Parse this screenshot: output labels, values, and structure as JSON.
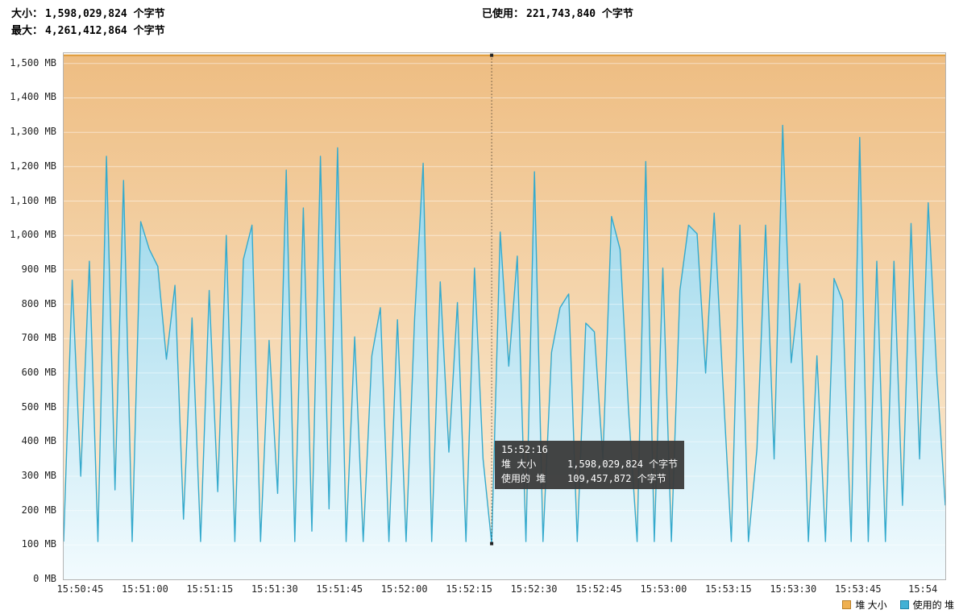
{
  "header": {
    "size_label": "大小：",
    "size_value": "1,598,029,824 个字节",
    "max_label": "最大：",
    "max_value": "4,261,412,864 个字节",
    "used_label": "已使用：",
    "used_value": "221,743,840 个字节"
  },
  "tooltip": {
    "time": "15:52:16",
    "rows": [
      {
        "name": "堆 大小",
        "value": "1,598,029,824 个字节"
      },
      {
        "name": "使用的 堆",
        "value": "109,457,872 个字节"
      }
    ]
  },
  "legend": [
    {
      "label": "堆 大小",
      "color": "#efb050",
      "border": "#b97f28"
    },
    {
      "label": "使用的 堆",
      "color": "#41b1d5",
      "border": "#1f84a8"
    }
  ],
  "chart_data": {
    "type": "area",
    "unit": "MB",
    "ylim": [
      0,
      1530
    ],
    "ytick_step": 100,
    "x_start": "15:50:41",
    "x_end": "15:54:05",
    "x_ticks": [
      "15:50:45",
      "15:51:00",
      "15:51:15",
      "15:51:30",
      "15:51:45",
      "15:52:00",
      "15:52:15",
      "15:52:30",
      "15:52:45",
      "15:53:00",
      "15:53:15",
      "15:53:30",
      "15:53:45",
      "15:54"
    ],
    "grid_color": "rgba(255,255,255,0.5)",
    "series": [
      {
        "name": "堆 大小",
        "kind": "constant",
        "value_mb": 1524,
        "line_color": "#de9a35",
        "fill_top": "#eebd82",
        "fill_bottom": "#fcf1de"
      },
      {
        "name": "使用的 堆",
        "kind": "points",
        "line_color": "#35aacd",
        "fill_top": "#8fd2e8",
        "fill_bottom": "#f2fbfe",
        "values_mb": [
          110,
          870,
          300,
          925,
          110,
          1230,
          260,
          1160,
          110,
          1040,
          960,
          910,
          640,
          855,
          175,
          760,
          110,
          840,
          255,
          1000,
          110,
          930,
          1030,
          110,
          695,
          250,
          1190,
          110,
          1080,
          140,
          1230,
          205,
          1255,
          110,
          705,
          110,
          650,
          790,
          110,
          755,
          110,
          760,
          1210,
          110,
          865,
          370,
          805,
          110,
          905,
          350,
          104,
          1010,
          620,
          940,
          110,
          1185,
          110,
          660,
          790,
          830,
          110,
          745,
          720,
          350,
          1055,
          960,
          490,
          110,
          1215,
          110,
          905,
          110,
          840,
          1030,
          1005,
          600,
          1065,
          580,
          110,
          1030,
          110,
          380,
          1030,
          350,
          1320,
          630,
          860,
          110,
          650,
          110,
          875,
          810,
          110,
          1285,
          110,
          925,
          110,
          925,
          215,
          1035,
          350,
          1095,
          600,
          215
        ]
      }
    ],
    "cursor": {
      "index": 50,
      "time": "15:52:16",
      "heap_mb": 1524,
      "used_mb": 104
    }
  }
}
